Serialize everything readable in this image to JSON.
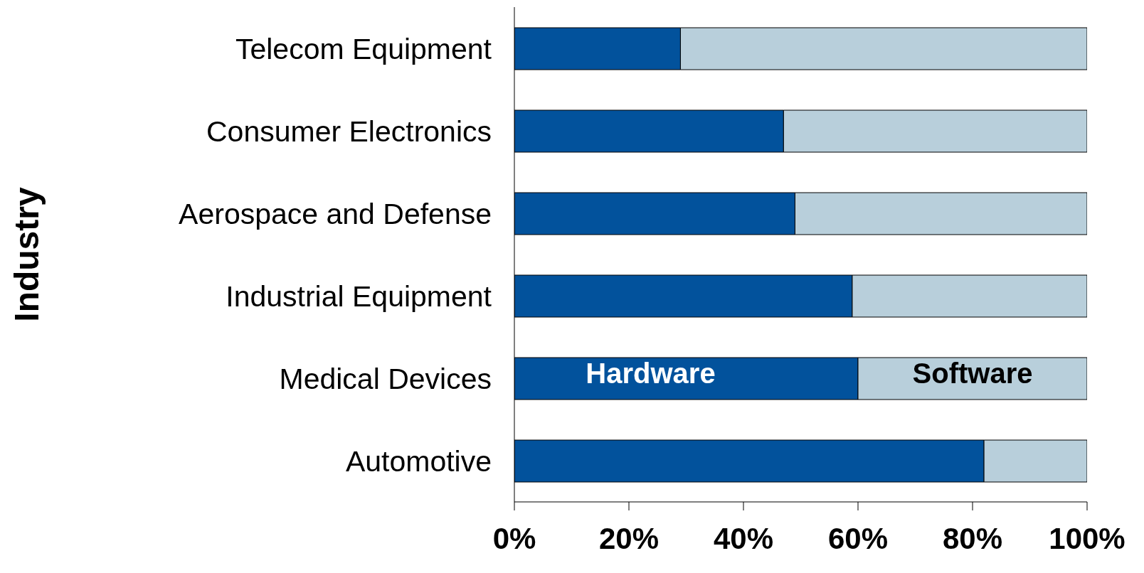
{
  "chart_data": {
    "type": "bar",
    "orientation": "horizontal",
    "stacked": true,
    "ylabel": "Industry",
    "categories": [
      "Telecom Equipment",
      "Consumer Electronics",
      "Aerospace and Defense",
      "Industrial Equipment",
      "Medical Devices",
      "Automotive"
    ],
    "series": [
      {
        "name": "Hardware",
        "color": "#02529c",
        "values": [
          29,
          47,
          49,
          59,
          60,
          82
        ]
      },
      {
        "name": "Software",
        "color": "#b8cfdb",
        "values": [
          71,
          53,
          51,
          41,
          40,
          18
        ]
      }
    ],
    "xlim": [
      0,
      100
    ],
    "xticks": [
      {
        "value": 0,
        "label": "0%"
      },
      {
        "value": 20,
        "label": "20%"
      },
      {
        "value": 40,
        "label": "40%"
      },
      {
        "value": 60,
        "label": "60%"
      },
      {
        "value": 80,
        "label": "80%"
      },
      {
        "value": 100,
        "label": "100%"
      }
    ],
    "grid": false,
    "legend": false
  }
}
